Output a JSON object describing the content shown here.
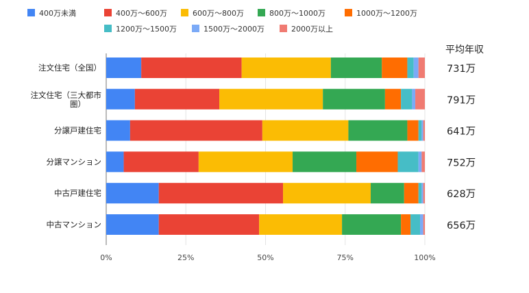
{
  "chart_data": {
    "type": "bar",
    "orientation": "horizontal",
    "stacked": "percent",
    "title": "",
    "xlabel": "",
    "ylabel": "",
    "xlim": [
      0,
      100
    ],
    "x_ticks": [
      "0%",
      "25%",
      "50%",
      "75%",
      "100%"
    ],
    "legend_position": "top",
    "categories": [
      "注文住宅（全国）",
      "注文住宅（三大都市圏）",
      "分譲戸建住宅",
      "分譲マンション",
      "中古戸建住宅",
      "中古マンション"
    ],
    "series": [
      {
        "name": "400万未満",
        "color": "#4285f4",
        "values": [
          11.0,
          9.0,
          7.5,
          5.5,
          16.5,
          16.5
        ]
      },
      {
        "name": "400万～600万",
        "color": "#ea4335",
        "values": [
          31.5,
          26.5,
          41.5,
          23.5,
          39.0,
          31.5
        ]
      },
      {
        "name": "600万～800万",
        "color": "#fbbc04",
        "values": [
          28.0,
          32.5,
          27.0,
          29.5,
          27.5,
          26.0
        ]
      },
      {
        "name": "800万～1000万",
        "color": "#34a853",
        "values": [
          16.0,
          19.5,
          18.5,
          20.0,
          10.5,
          18.5
        ]
      },
      {
        "name": "1000万～1200万",
        "color": "#ff6d01",
        "values": [
          8.0,
          5.0,
          3.5,
          13.0,
          4.5,
          3.0
        ]
      },
      {
        "name": "1200万～1500万",
        "color": "#46bdc6",
        "values": [
          2.0,
          3.5,
          1.0,
          6.5,
          1.0,
          3.0
        ]
      },
      {
        "name": "1500万～2000万",
        "color": "#7baaf7",
        "values": [
          1.5,
          1.0,
          0.5,
          1.0,
          0.5,
          1.0
        ]
      },
      {
        "name": "2000万以上",
        "color": "#f07b72",
        "values": [
          2.0,
          3.0,
          0.5,
          1.0,
          0.5,
          0.5
        ]
      }
    ],
    "side_title": "平均年収",
    "averages": [
      "731万",
      "791万",
      "641万",
      "752万",
      "628万",
      "656万"
    ]
  }
}
